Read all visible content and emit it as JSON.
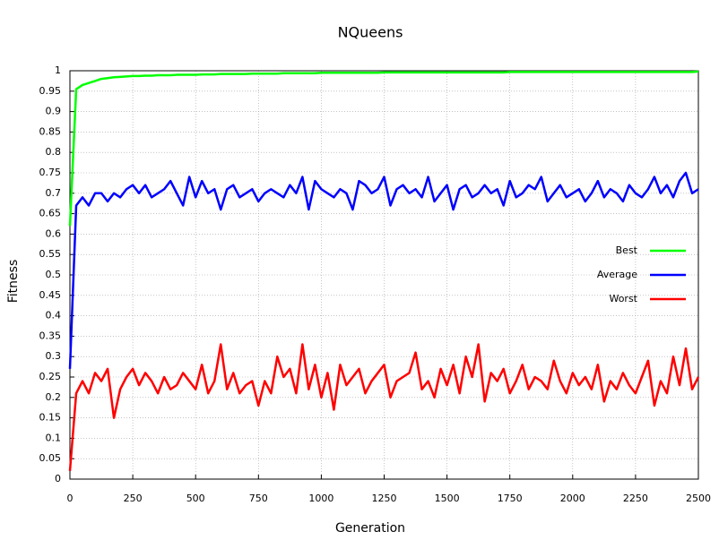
{
  "chart_data": {
    "type": "line",
    "title": "NQueens",
    "x_label": "Generation",
    "y_label": "Fitness",
    "x": [
      0,
      25,
      50,
      75,
      100,
      125,
      150,
      175,
      200,
      225,
      250,
      275,
      300,
      325,
      350,
      375,
      400,
      425,
      450,
      475,
      500,
      525,
      550,
      575,
      600,
      625,
      650,
      675,
      700,
      725,
      750,
      775,
      800,
      825,
      850,
      875,
      900,
      925,
      950,
      975,
      1000,
      1025,
      1050,
      1075,
      1100,
      1125,
      1150,
      1175,
      1200,
      1225,
      1250,
      1275,
      1300,
      1325,
      1350,
      1375,
      1400,
      1425,
      1450,
      1475,
      1500,
      1525,
      1550,
      1575,
      1600,
      1625,
      1650,
      1675,
      1700,
      1725,
      1750,
      1775,
      1800,
      1825,
      1850,
      1875,
      1900,
      1925,
      1950,
      1975,
      2000,
      2025,
      2050,
      2075,
      2100,
      2125,
      2150,
      2175,
      2200,
      2225,
      2250,
      2275,
      2300,
      2325,
      2350,
      2375,
      2400,
      2425,
      2450,
      2475,
      2500
    ],
    "series": [
      {
        "name": "Best",
        "color": "#00ff00",
        "values": [
          0.62,
          0.955,
          0.965,
          0.97,
          0.975,
          0.98,
          0.982,
          0.984,
          0.985,
          0.986,
          0.987,
          0.987,
          0.988,
          0.988,
          0.989,
          0.989,
          0.989,
          0.99,
          0.99,
          0.99,
          0.99,
          0.991,
          0.991,
          0.991,
          0.992,
          0.992,
          0.992,
          0.992,
          0.992,
          0.993,
          0.993,
          0.993,
          0.993,
          0.993,
          0.994,
          0.994,
          0.994,
          0.994,
          0.994,
          0.994,
          0.995,
          0.995,
          0.995,
          0.995,
          0.995,
          0.995,
          0.995,
          0.995,
          0.995,
          0.995,
          0.996,
          0.996,
          0.996,
          0.996,
          0.996,
          0.996,
          0.996,
          0.996,
          0.996,
          0.996,
          0.996,
          0.996,
          0.996,
          0.996,
          0.996,
          0.996,
          0.996,
          0.996,
          0.996,
          0.996,
          0.997,
          0.997,
          0.997,
          0.997,
          0.997,
          0.997,
          0.997,
          0.997,
          0.997,
          0.997,
          0.997,
          0.997,
          0.997,
          0.997,
          0.997,
          0.997,
          0.997,
          0.997,
          0.997,
          0.997,
          0.997,
          0.997,
          0.997,
          0.997,
          0.997,
          0.997,
          0.997,
          0.997,
          0.997,
          0.997,
          0.998
        ]
      },
      {
        "name": "Average",
        "color": "#0000ff",
        "values": [
          0.27,
          0.67,
          0.69,
          0.67,
          0.7,
          0.7,
          0.68,
          0.7,
          0.69,
          0.71,
          0.72,
          0.7,
          0.72,
          0.69,
          0.7,
          0.71,
          0.73,
          0.7,
          0.67,
          0.74,
          0.69,
          0.73,
          0.7,
          0.71,
          0.66,
          0.71,
          0.72,
          0.69,
          0.7,
          0.71,
          0.68,
          0.7,
          0.71,
          0.7,
          0.69,
          0.72,
          0.7,
          0.74,
          0.66,
          0.73,
          0.71,
          0.7,
          0.69,
          0.71,
          0.7,
          0.66,
          0.73,
          0.72,
          0.7,
          0.71,
          0.74,
          0.67,
          0.71,
          0.72,
          0.7,
          0.71,
          0.69,
          0.74,
          0.68,
          0.7,
          0.72,
          0.66,
          0.71,
          0.72,
          0.69,
          0.7,
          0.72,
          0.7,
          0.71,
          0.67,
          0.73,
          0.69,
          0.7,
          0.72,
          0.71,
          0.74,
          0.68,
          0.7,
          0.72,
          0.69,
          0.7,
          0.71,
          0.68,
          0.7,
          0.73,
          0.69,
          0.71,
          0.7,
          0.68,
          0.72,
          0.7,
          0.69,
          0.71,
          0.74,
          0.7,
          0.72,
          0.69,
          0.73,
          0.75,
          0.7,
          0.71
        ]
      },
      {
        "name": "Worst",
        "color": "#ff0000",
        "values": [
          0.02,
          0.21,
          0.24,
          0.21,
          0.26,
          0.24,
          0.27,
          0.15,
          0.22,
          0.25,
          0.27,
          0.23,
          0.26,
          0.24,
          0.21,
          0.25,
          0.22,
          0.23,
          0.26,
          0.24,
          0.22,
          0.28,
          0.21,
          0.24,
          0.33,
          0.22,
          0.26,
          0.21,
          0.23,
          0.24,
          0.18,
          0.24,
          0.21,
          0.3,
          0.25,
          0.27,
          0.21,
          0.33,
          0.22,
          0.28,
          0.2,
          0.26,
          0.17,
          0.28,
          0.23,
          0.25,
          0.27,
          0.21,
          0.24,
          0.26,
          0.28,
          0.2,
          0.24,
          0.25,
          0.26,
          0.31,
          0.22,
          0.24,
          0.2,
          0.27,
          0.23,
          0.28,
          0.21,
          0.3,
          0.25,
          0.33,
          0.19,
          0.26,
          0.24,
          0.27,
          0.21,
          0.24,
          0.28,
          0.22,
          0.25,
          0.24,
          0.22,
          0.29,
          0.24,
          0.21,
          0.26,
          0.23,
          0.25,
          0.22,
          0.28,
          0.19,
          0.24,
          0.22,
          0.26,
          0.23,
          0.21,
          0.25,
          0.29,
          0.18,
          0.24,
          0.21,
          0.3,
          0.23,
          0.32,
          0.22,
          0.25
        ]
      }
    ],
    "xlim": [
      0,
      2500
    ],
    "xticks": [
      0,
      250,
      500,
      750,
      1000,
      1250,
      1500,
      1750,
      2000,
      2250,
      2500
    ],
    "ylim": [
      0,
      1
    ],
    "yticks": [
      0,
      0.05,
      0.1,
      0.15,
      0.2,
      0.25,
      0.3,
      0.35,
      0.4,
      0.45,
      0.5,
      0.55,
      0.6,
      0.65,
      0.7,
      0.75,
      0.8,
      0.85,
      0.9,
      0.95,
      1
    ],
    "grid": true,
    "legend": "right"
  }
}
